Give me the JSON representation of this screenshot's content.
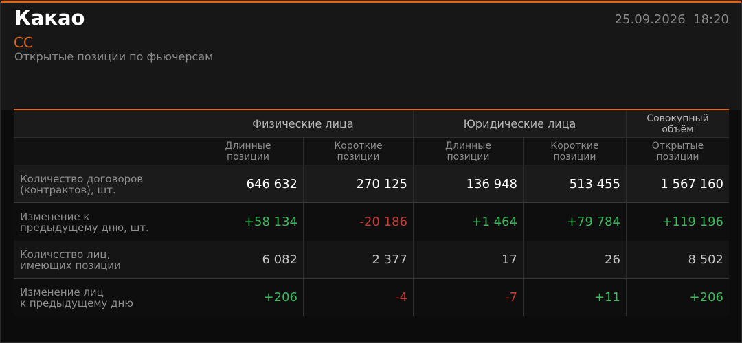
{
  "header": {
    "title": "Какао",
    "datetime": "25.09.2026  18:20",
    "code": "CC",
    "subtitle": "Открытые позиции по фьючерсам"
  },
  "table": {
    "groups": [
      "Физические лица",
      "Юридические лица",
      [
        "Совокупный",
        "объём"
      ]
    ],
    "columns": [
      [
        "Длинные",
        "позиции"
      ],
      [
        "Короткие",
        "позиции"
      ],
      [
        "Длинные",
        "позиции"
      ],
      [
        "Короткие",
        "позиции"
      ],
      [
        "Открытые",
        "позиции"
      ]
    ],
    "rows": [
      {
        "label": [
          "Количество договоров",
          "(контрактов), шт."
        ],
        "cells": [
          "646 632",
          "270 125",
          "136 948",
          "513 455",
          "1 567 160"
        ]
      },
      {
        "label": [
          "Изменение к",
          "предыдущему дню, шт."
        ],
        "cells": [
          "+58 134",
          "-20 186",
          "+1 464",
          "+79 784",
          "+119 196"
        ]
      },
      {
        "label": [
          "Количество лиц,",
          "имеющих позиции"
        ],
        "cells": [
          "6 082",
          "2 377",
          "17",
          "26",
          "8 502"
        ]
      },
      {
        "label": [
          "Изменение лиц",
          "к предыдущему дню"
        ],
        "cells": [
          "+206",
          "-4",
          "-7",
          "+11",
          "+206"
        ]
      }
    ]
  }
}
